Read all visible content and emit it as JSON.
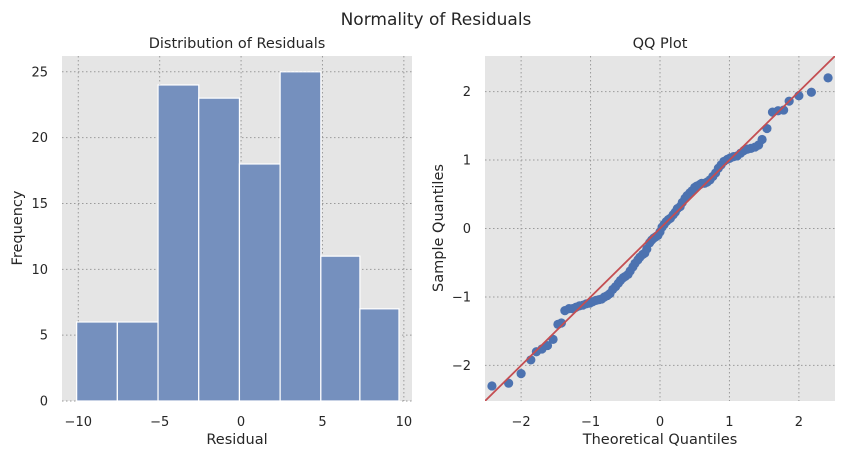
{
  "figure": {
    "title": "Normality of Residuals"
  },
  "chart_data": [
    {
      "type": "bar",
      "title": "Distribution of Residuals",
      "xlabel": "Residual",
      "ylabel": "Frequency",
      "bin_edges": [
        -10.1,
        -7.6,
        -5.1,
        -2.6,
        -0.1,
        2.4,
        4.9,
        7.3,
        9.7
      ],
      "values": [
        6,
        6,
        24,
        23,
        18,
        25,
        11,
        7
      ],
      "xlim": [
        -11,
        10.5
      ],
      "ylim": [
        0,
        26.2
      ],
      "xticks": [
        -10,
        -5,
        0,
        5,
        10
      ],
      "yticks": [
        0,
        5,
        10,
        15,
        20,
        25
      ],
      "grid": true,
      "colors": {
        "bar": "#7590be",
        "edge": "#ffffff",
        "background": "#e5e5e5"
      }
    },
    {
      "type": "scatter",
      "title": "QQ Plot",
      "xlabel": "Theoretical Quantiles",
      "ylabel": "Sample Quantiles",
      "xlim": [
        -2.52,
        2.52
      ],
      "ylim": [
        -2.52,
        2.52
      ],
      "xticks": [
        -2,
        -1,
        0,
        1,
        2
      ],
      "yticks": [
        -2,
        -1,
        0,
        1,
        2
      ],
      "grid": true,
      "reference_line": {
        "slope": 1,
        "intercept": 0
      },
      "colors": {
        "points": "#4c72b0",
        "line": "#c44e52",
        "background": "#e5e5e5"
      },
      "points": [
        [
          -2.42,
          -2.3
        ],
        [
          -2.18,
          -2.26
        ],
        [
          -2.0,
          -2.12
        ],
        [
          -1.86,
          -1.92
        ],
        [
          -1.78,
          -1.8
        ],
        [
          -1.7,
          -1.76
        ],
        [
          -1.62,
          -1.71
        ],
        [
          -1.54,
          -1.62
        ],
        [
          -1.47,
          -1.4
        ],
        [
          -1.42,
          -1.38
        ],
        [
          -1.37,
          -1.2
        ],
        [
          -1.31,
          -1.17
        ],
        [
          -1.26,
          -1.17
        ],
        [
          -1.21,
          -1.15
        ],
        [
          -1.16,
          -1.13
        ],
        [
          -1.11,
          -1.12
        ],
        [
          -1.06,
          -1.1
        ],
        [
          -1.01,
          -1.09
        ],
        [
          -0.97,
          -1.07
        ],
        [
          -0.92,
          -1.05
        ],
        [
          -0.88,
          -1.04
        ],
        [
          -0.84,
          -1.03
        ],
        [
          -0.8,
          -1.0
        ],
        [
          -0.76,
          -0.98
        ],
        [
          -0.72,
          -0.95
        ],
        [
          -0.68,
          -0.89
        ],
        [
          -0.64,
          -0.85
        ],
        [
          -0.6,
          -0.8
        ],
        [
          -0.57,
          -0.76
        ],
        [
          -0.53,
          -0.72
        ],
        [
          -0.5,
          -0.7
        ],
        [
          -0.46,
          -0.67
        ],
        [
          -0.43,
          -0.62
        ],
        [
          -0.39,
          -0.56
        ],
        [
          -0.36,
          -0.51
        ],
        [
          -0.32,
          -0.46
        ],
        [
          -0.29,
          -0.42
        ],
        [
          -0.25,
          -0.38
        ],
        [
          -0.22,
          -0.36
        ],
        [
          -0.19,
          -0.3
        ],
        [
          -0.15,
          -0.21
        ],
        [
          -0.12,
          -0.17
        ],
        [
          -0.09,
          -0.14
        ],
        [
          -0.06,
          -0.12
        ],
        [
          -0.03,
          -0.1
        ],
        [
          0.0,
          -0.05
        ],
        [
          0.03,
          0.02
        ],
        [
          0.06,
          0.06
        ],
        [
          0.09,
          0.1
        ],
        [
          0.12,
          0.13
        ],
        [
          0.15,
          0.15
        ],
        [
          0.19,
          0.2
        ],
        [
          0.22,
          0.24
        ],
        [
          0.25,
          0.29
        ],
        [
          0.29,
          0.32
        ],
        [
          0.32,
          0.38
        ],
        [
          0.36,
          0.44
        ],
        [
          0.39,
          0.48
        ],
        [
          0.43,
          0.52
        ],
        [
          0.46,
          0.55
        ],
        [
          0.5,
          0.6
        ],
        [
          0.53,
          0.62
        ],
        [
          0.57,
          0.64
        ],
        [
          0.6,
          0.66
        ],
        [
          0.64,
          0.66
        ],
        [
          0.68,
          0.68
        ],
        [
          0.72,
          0.71
        ],
        [
          0.76,
          0.76
        ],
        [
          0.8,
          0.81
        ],
        [
          0.84,
          0.88
        ],
        [
          0.88,
          0.93
        ],
        [
          0.92,
          0.98
        ],
        [
          0.97,
          1.01
        ],
        [
          1.01,
          1.03
        ],
        [
          1.06,
          1.05
        ],
        [
          1.11,
          1.06
        ],
        [
          1.16,
          1.1
        ],
        [
          1.21,
          1.14
        ],
        [
          1.26,
          1.16
        ],
        [
          1.31,
          1.17
        ],
        [
          1.37,
          1.19
        ],
        [
          1.42,
          1.22
        ],
        [
          1.47,
          1.3
        ],
        [
          1.54,
          1.46
        ],
        [
          1.62,
          1.7
        ],
        [
          1.7,
          1.72
        ],
        [
          1.78,
          1.73
        ],
        [
          1.86,
          1.86
        ],
        [
          2.0,
          1.94
        ],
        [
          2.18,
          1.99
        ],
        [
          2.42,
          2.2
        ]
      ]
    }
  ]
}
